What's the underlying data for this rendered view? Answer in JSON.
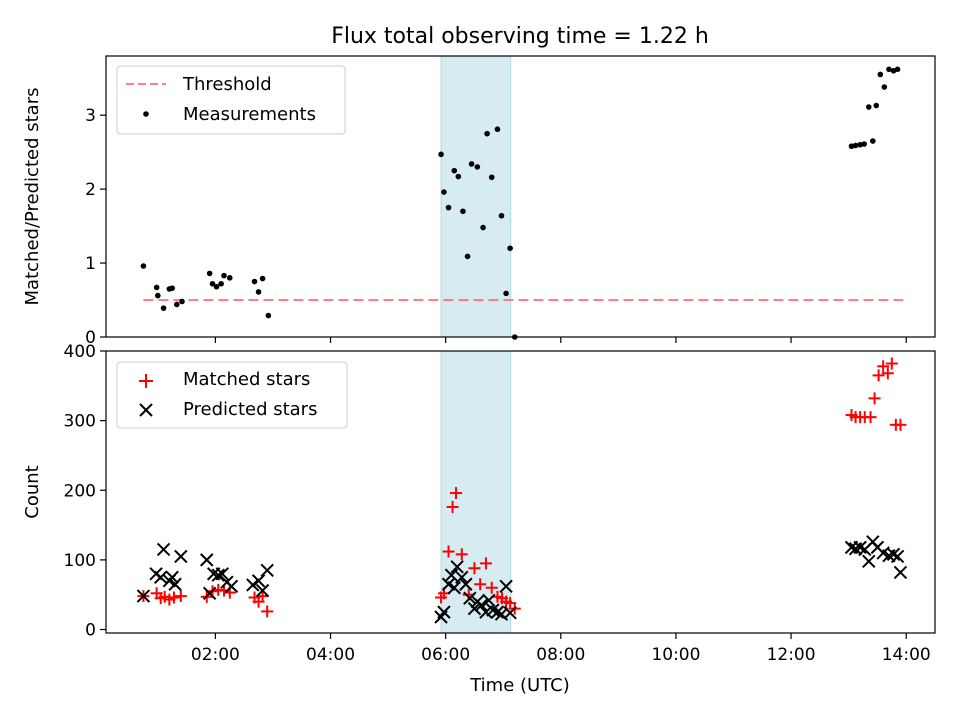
{
  "colors": {
    "threshold": "#ff7f7f",
    "measurements": "#000000",
    "matched": "#ff0000",
    "predicted": "#000000",
    "highlight": "#add8e6"
  },
  "chart_data": [
    {
      "type": "scatter",
      "title": "Flux total observing time = 1.22 h",
      "xlabel": "",
      "ylabel": "Matched/Predicted stars",
      "xlim": [
        0.1,
        14.5
      ],
      "ylim": [
        0,
        3.8
      ],
      "yticks": [
        0,
        1,
        2,
        3
      ],
      "legend_position": "upper-left",
      "highlight_span": [
        5.92,
        7.13
      ],
      "threshold": {
        "name": "Threshold",
        "x": [
          0.75,
          13.95
        ],
        "y": 0.5
      },
      "series": [
        {
          "name": "Measurements",
          "x": [
            0.75,
            0.98,
            1.0,
            1.1,
            1.2,
            1.25,
            1.33,
            1.42,
            1.9,
            1.95,
            2.02,
            2.1,
            2.15,
            2.25,
            2.68,
            2.75,
            2.82,
            2.92,
            5.92,
            5.97,
            6.05,
            6.15,
            6.22,
            6.3,
            6.38,
            6.45,
            6.55,
            6.65,
            6.72,
            6.8,
            6.9,
            6.97,
            7.05,
            7.12,
            7.2,
            13.05,
            13.12,
            13.2,
            13.27,
            13.35,
            13.42,
            13.48,
            13.55,
            13.62,
            13.7,
            13.78,
            13.85
          ],
          "y": [
            0.96,
            0.67,
            0.56,
            0.39,
            0.65,
            0.66,
            0.44,
            0.48,
            0.86,
            0.72,
            0.68,
            0.72,
            0.83,
            0.8,
            0.75,
            0.61,
            0.79,
            0.29,
            2.47,
            1.96,
            1.75,
            2.25,
            2.17,
            1.7,
            1.09,
            2.34,
            2.3,
            1.48,
            2.75,
            2.16,
            2.81,
            1.64,
            0.59,
            1.2,
            0.0,
            2.58,
            2.59,
            2.6,
            2.61,
            3.11,
            2.65,
            3.13,
            3.55,
            3.38,
            3.62,
            3.6,
            3.62
          ]
        }
      ]
    },
    {
      "type": "scatter",
      "title": "",
      "xlabel": "Time (UTC)",
      "ylabel": "Count",
      "xlim": [
        0.1,
        14.5
      ],
      "ylim": [
        -5,
        400
      ],
      "yticks": [
        0,
        100,
        200,
        300,
        400
      ],
      "xticks": [
        2,
        4,
        6,
        8,
        10,
        12,
        14
      ],
      "xticklabels": [
        "02:00",
        "04:00",
        "06:00",
        "08:00",
        "10:00",
        "12:00",
        "14:00"
      ],
      "legend_position": "upper-left",
      "highlight_span": [
        5.92,
        7.13
      ],
      "series": [
        {
          "name": "Matched stars",
          "marker": "plus",
          "x": [
            0.75,
            0.98,
            1.05,
            1.12,
            1.2,
            1.28,
            1.4,
            1.85,
            1.95,
            2.05,
            2.15,
            2.25,
            2.68,
            2.75,
            2.82,
            2.9,
            5.92,
            5.97,
            6.05,
            6.12,
            6.18,
            6.28,
            6.4,
            6.5,
            6.6,
            6.7,
            6.8,
            6.9,
            6.98,
            7.05,
            7.12,
            7.2,
            13.05,
            13.12,
            13.2,
            13.28,
            13.38,
            13.45,
            13.52,
            13.6,
            13.68,
            13.75,
            13.82,
            13.9
          ],
          "y": [
            48,
            52,
            45,
            47,
            43,
            46,
            48,
            47,
            55,
            57,
            56,
            53,
            46,
            40,
            48,
            26,
            46,
            52,
            112,
            176,
            196,
            108,
            50,
            88,
            65,
            95,
            60,
            47,
            45,
            40,
            38,
            30,
            308,
            305,
            305,
            305,
            305,
            332,
            365,
            378,
            368,
            382,
            294,
            294
          ]
        },
        {
          "name": "Predicted stars",
          "marker": "x",
          "x": [
            0.75,
            0.97,
            1.05,
            1.1,
            1.2,
            1.25,
            1.3,
            1.4,
            1.85,
            1.9,
            1.97,
            2.05,
            2.12,
            2.2,
            2.28,
            2.65,
            2.75,
            2.82,
            2.9,
            5.92,
            5.97,
            6.05,
            6.1,
            6.15,
            6.2,
            6.28,
            6.35,
            6.42,
            6.5,
            6.55,
            6.62,
            6.7,
            6.75,
            6.82,
            6.9,
            6.97,
            7.05,
            7.12,
            13.05,
            13.12,
            13.2,
            13.28,
            13.35,
            13.42,
            13.5,
            13.6,
            13.7,
            13.78,
            13.85,
            13.9
          ],
          "y": [
            48,
            80,
            75,
            115,
            70,
            75,
            65,
            105,
            100,
            52,
            80,
            78,
            80,
            68,
            62,
            64,
            70,
            56,
            85,
            18,
            25,
            65,
            78,
            60,
            90,
            75,
            65,
            45,
            30,
            40,
            35,
            25,
            42,
            28,
            25,
            22,
            62,
            24,
            118,
            116,
            118,
            115,
            98,
            126,
            118,
            110,
            106,
            108,
            105,
            82
          ]
        }
      ]
    }
  ]
}
